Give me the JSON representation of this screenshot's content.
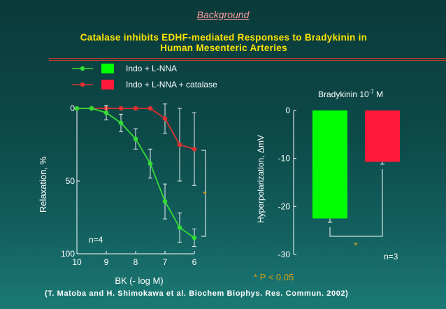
{
  "slide": {
    "background_link": "Background",
    "title": "Catalase inhibits EDHF-mediated Responses to Bradykinin in Human Mesenteric Arteries",
    "citation": "(T. Matoba and H. Shimokawa et al. Biochem Biophys. Res. Commun. 2002)",
    "pvalue_note": "* P < 0.05",
    "accent_color": "#ffe600",
    "link_color": "#ff9a9a"
  },
  "legend": [
    {
      "label": "Indo + L-NNA",
      "color": "#33dd33",
      "swatch": "#00ff00"
    },
    {
      "label": "Indo + L-NNA + catalase",
      "color": "#e03030",
      "swatch": "#ff1a3a"
    }
  ],
  "chart_data": [
    {
      "type": "line",
      "xlabel": "BK (- log M)",
      "ylabel": "Relaxation, %",
      "xlim": [
        10,
        6
      ],
      "ylim": [
        0,
        100
      ],
      "xticks": [
        "10",
        "9",
        "8",
        "7",
        "6"
      ],
      "yticks": [
        "0",
        "50",
        "100"
      ],
      "annotation_n": "n=4",
      "significance": "*",
      "x": [
        10,
        9.5,
        9,
        8.5,
        8,
        7.5,
        7,
        6.5,
        6
      ],
      "series": [
        {
          "color": "#33dd33",
          "values": [
            0,
            0,
            3,
            10,
            21,
            38,
            64,
            82,
            89
          ],
          "errors": [
            0,
            0,
            5,
            6,
            7,
            10,
            12,
            10,
            6
          ]
        },
        {
          "color": "#e03030",
          "values": [
            0,
            0,
            0,
            0,
            0,
            0,
            7,
            25,
            28
          ],
          "errors": [
            0,
            0,
            0,
            0,
            0,
            0,
            10,
            25,
            25
          ]
        }
      ]
    },
    {
      "type": "bar",
      "title": "Bradykinin 10",
      "title_sup": "-7",
      "title_unit": " M",
      "ylabel": "Hyperpolarization, ΔmV",
      "ylim": [
        -30,
        0
      ],
      "yticks": [
        "0",
        "-10",
        "-20",
        "-30"
      ],
      "annotation_n": "n=3",
      "significance": "*",
      "categories": [
        "Indo + L-NNA",
        "Indo + L-NNA + catalase"
      ],
      "values": [
        -22.5,
        -10.7
      ],
      "errors": [
        0.8,
        0.5
      ],
      "colors": [
        "#00ff00",
        "#ff1a3a"
      ]
    }
  ]
}
